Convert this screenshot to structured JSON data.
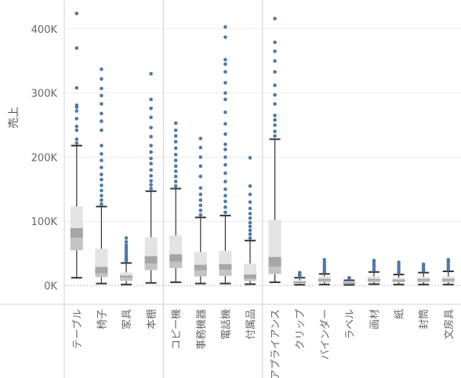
{
  "chart_data": {
    "type": "box-and-whisker",
    "ylabel": "売上",
    "y_ticks": [
      "0K",
      "100K",
      "200K",
      "300K",
      "400K"
    ],
    "ylim": [
      0,
      430000
    ],
    "grid": true,
    "groups": [
      {
        "start": 0,
        "end": 3
      },
      {
        "start": 4,
        "end": 7
      },
      {
        "start": 8,
        "end": 16
      }
    ],
    "categories": [
      "テーブル",
      "椅子",
      "家具",
      "本棚",
      "コピー機",
      "事務機器",
      "電話機",
      "付属品",
      "アプライアンス",
      "クリップ",
      "バインダー",
      "ラベル",
      "画材",
      "紙",
      "封筒",
      "文房具"
    ],
    "boxes": [
      {
        "min": 12000,
        "q1": 55000,
        "median": 82000,
        "q3": 123000,
        "max": 218000,
        "outliers": [
          222000,
          228000,
          242000,
          248000,
          260000,
          272000,
          278000,
          281000,
          308000,
          370000,
          424000
        ]
      },
      {
        "min": 3000,
        "q1": 13000,
        "median": 24000,
        "q3": 57000,
        "max": 123000,
        "outliers": [
          127000,
          133000,
          140000,
          148000,
          156000,
          165000,
          173000,
          184000,
          195000,
          205000,
          218000,
          242000,
          256000,
          268000,
          283000,
          296000,
          307000,
          322000,
          337000
        ]
      },
      {
        "min": 1500,
        "q1": 7000,
        "median": 14000,
        "q3": 20000,
        "max": 35000,
        "outliers": [
          38000,
          41000,
          44000,
          47000,
          51000,
          55000,
          59000,
          63000,
          68000,
          74000
        ]
      },
      {
        "min": 4000,
        "q1": 24000,
        "median": 40000,
        "q3": 75000,
        "max": 147000,
        "outliers": [
          151000,
          157000,
          163000,
          171000,
          180000,
          190000,
          198000,
          208000,
          218000,
          232000,
          246000,
          262000,
          276000,
          290000,
          330000
        ]
      },
      {
        "min": 5000,
        "q1": 27000,
        "median": 43000,
        "q3": 78000,
        "max": 151000,
        "outliers": [
          155000,
          162000,
          170000,
          178000,
          186000,
          195000,
          204000,
          214000,
          224000,
          233000,
          242000,
          253000
        ]
      },
      {
        "min": 3000,
        "q1": 14000,
        "median": 28000,
        "q3": 52000,
        "max": 106000,
        "outliers": [
          110000,
          117000,
          125000,
          133000,
          142000,
          152000,
          170000,
          186000,
          200000,
          215000,
          229000
        ]
      },
      {
        "min": 3000,
        "q1": 15000,
        "median": 29000,
        "q3": 54000,
        "max": 109000,
        "outliers": [
          114000,
          122000,
          131000,
          140000,
          150000,
          162000,
          175000,
          188000,
          200000,
          212000,
          220000,
          236000,
          252000,
          270000,
          290000,
          300000,
          316000,
          333000,
          345000,
          352000,
          387000,
          403000
        ]
      },
      {
        "min": 2000,
        "q1": 7000,
        "median": 14000,
        "q3": 34000,
        "max": 70000,
        "outliers": [
          74000,
          80000,
          86000,
          92000,
          98000,
          105000,
          112000,
          120000,
          130000,
          142000,
          155000,
          199000
        ]
      },
      {
        "min": 5000,
        "q1": 18000,
        "median": 37000,
        "q3": 102000,
        "max": 228000,
        "outliers": [
          233000,
          240000,
          250000,
          258000,
          265000,
          283000,
          297000,
          312000,
          333000,
          350000,
          365000,
          379000,
          416000
        ]
      },
      {
        "min": 1000,
        "q1": 3000,
        "median": 5000,
        "q3": 8000,
        "max": 12000,
        "outliers": [
          14000,
          16000,
          18000,
          20000
        ]
      },
      {
        "min": 1500,
        "q1": 5000,
        "median": 9000,
        "q3": 14000,
        "max": 18000,
        "outliers": [
          21000,
          24000,
          28000,
          32000,
          36000,
          40000
        ]
      },
      {
        "min": 800,
        "q1": 2000,
        "median": 4000,
        "q3": 6000,
        "max": 8000,
        "outliers": [
          10000,
          12000
        ]
      },
      {
        "min": 2000,
        "q1": 5000,
        "median": 9000,
        "q3": 14000,
        "max": 21000,
        "outliers": [
          24000,
          28000,
          32000,
          36000,
          39000
        ]
      },
      {
        "min": 1500,
        "q1": 5000,
        "median": 8000,
        "q3": 12000,
        "max": 17000,
        "outliers": [
          20000,
          24000,
          28000,
          32000,
          36000
        ]
      },
      {
        "min": 1500,
        "q1": 5000,
        "median": 9000,
        "q3": 13000,
        "max": 20000,
        "outliers": [
          23000,
          26000,
          30000,
          33000
        ]
      },
      {
        "min": 1500,
        "q1": 5000,
        "median": 9000,
        "q3": 14000,
        "max": 22000,
        "outliers": [
          25000,
          29000,
          33000,
          37000,
          40000
        ]
      }
    ],
    "colors": {
      "point": "#4e79a7",
      "whisker": "#333333",
      "box_outer": "#e3e3e3",
      "box_inner": "#c4c4c4",
      "median_band": "#a6a6a6",
      "grid": "#ececec",
      "divider": "#d0d0d0",
      "axis_text": "#666666"
    }
  }
}
